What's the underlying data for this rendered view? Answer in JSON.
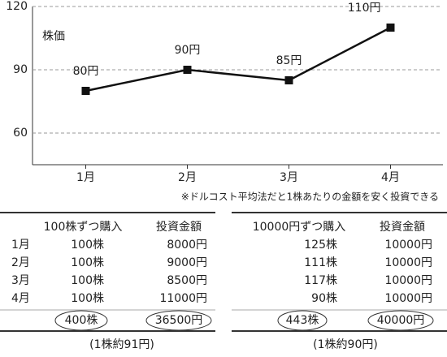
{
  "chart_data": {
    "type": "line",
    "y_label": "株価",
    "categories": [
      "1月",
      "2月",
      "3月",
      "4月"
    ],
    "values": [
      80,
      90,
      85,
      110
    ],
    "value_labels": [
      "80円",
      "90円",
      "85円",
      "110円"
    ],
    "color": "#111111",
    "ylim": [
      45,
      120
    ],
    "yticks": [
      60,
      90,
      120
    ],
    "grid": true,
    "note": "※ドルコスト平均法だと1株あたりの金額を安く投資できる"
  },
  "tables": [
    {
      "header": [
        "100株ずつ購入",
        "投資金額"
      ],
      "rows": [
        [
          "1月",
          "100株",
          "8000円"
        ],
        [
          "2月",
          "100株",
          "9000円"
        ],
        [
          "3月",
          "100株",
          "8500円"
        ],
        [
          "4月",
          "100株",
          "11000円"
        ]
      ],
      "total": [
        "400株",
        "36500円"
      ],
      "note": "(1株約91円)"
    },
    {
      "header": [
        "10000円ずつ購入",
        "投資金額"
      ],
      "rows": [
        [
          "125株",
          "10000円"
        ],
        [
          "111株",
          "10000円"
        ],
        [
          "117株",
          "10000円"
        ],
        [
          "90株",
          "10000円"
        ]
      ],
      "total": [
        "443株",
        "40000円"
      ],
      "note": "(1株約90円)"
    }
  ]
}
